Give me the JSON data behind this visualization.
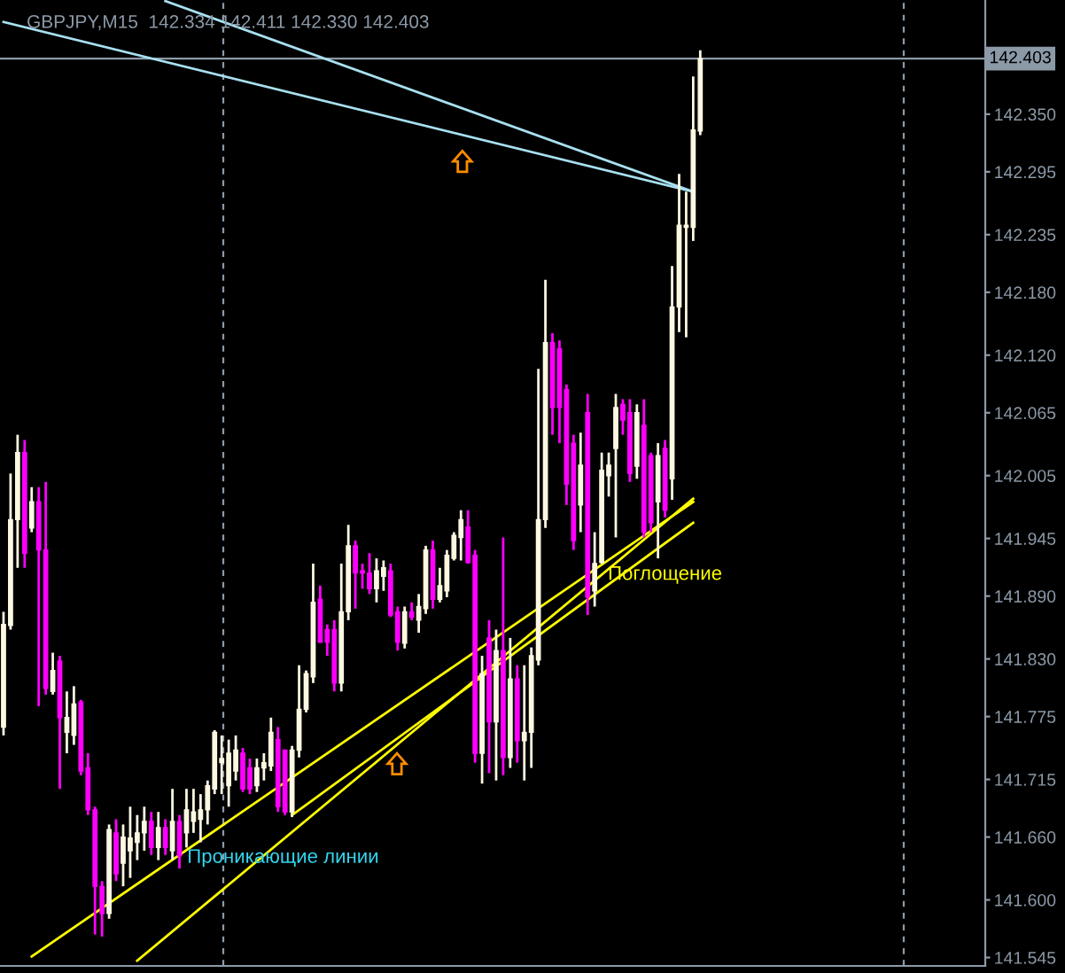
{
  "chart_data": {
    "type": "candlestick",
    "title": "GBPJPY,M15  142.334 142.411 142.330 142.403",
    "categories": [
      null,
      null,
      null,
      null,
      null,
      null,
      null,
      null,
      null,
      null,
      null,
      null,
      null,
      null,
      null,
      null,
      null,
      null,
      null,
      null,
      null,
      null,
      null,
      null,
      null,
      null,
      null,
      null,
      null,
      null,
      null,
      null,
      null,
      null,
      null,
      null,
      null,
      null,
      null,
      null,
      null,
      null,
      null,
      null,
      null,
      null,
      null,
      null,
      null,
      null,
      null,
      null,
      null,
      null,
      null,
      null,
      null,
      null,
      null,
      null,
      null,
      null,
      null,
      null,
      null,
      null,
      null,
      null,
      null,
      null,
      null,
      null,
      null,
      null,
      null,
      null,
      null,
      null,
      null,
      null,
      null,
      null,
      null,
      null,
      null,
      null,
      null,
      null,
      null,
      null,
      null,
      null,
      null,
      null,
      null,
      null,
      null,
      null,
      null,
      null,
      null,
      null,
      null,
      null,
      null,
      null,
      null,
      null,
      null,
      null,
      null,
      null,
      null,
      null,
      null,
      null,
      null,
      null,
      null,
      null,
      null,
      null,
      null,
      null,
      null,
      null,
      null,
      null,
      null,
      null,
      null,
      null,
      null,
      null,
      null,
      null,
      null,
      null,
      null,
      null
    ],
    "ohlc": [
      [
        141.765,
        141.875,
        141.757,
        141.863
      ],
      [
        141.862,
        142.007,
        141.858,
        141.963
      ],
      [
        141.963,
        142.044,
        141.917,
        142.027
      ],
      [
        142.027,
        142.039,
        141.917,
        141.931
      ],
      [
        141.955,
        141.994,
        141.951,
        141.98
      ],
      [
        141.98,
        141.994,
        141.785,
        141.934
      ],
      [
        141.934,
        141.999,
        141.796,
        141.802
      ],
      [
        141.799,
        141.836,
        141.796,
        141.819
      ],
      [
        141.828,
        141.833,
        141.706,
        141.774
      ],
      [
        141.76,
        141.799,
        141.74,
        141.774
      ],
      [
        141.757,
        141.804,
        141.748,
        141.787
      ],
      [
        141.789,
        141.791,
        141.719,
        141.723
      ],
      [
        141.726,
        141.74,
        141.681,
        141.686
      ],
      [
        141.686,
        141.689,
        141.567,
        141.613
      ],
      [
        141.613,
        141.618,
        141.565,
        141.587
      ],
      [
        141.587,
        141.672,
        141.582,
        141.667
      ],
      [
        141.664,
        141.677,
        141.618,
        141.625
      ],
      [
        141.635,
        141.672,
        141.613,
        141.66
      ],
      [
        141.647,
        141.689,
        141.621,
        141.659
      ],
      [
        141.655,
        141.681,
        141.638,
        141.664
      ],
      [
        141.664,
        141.689,
        141.647,
        141.675
      ],
      [
        141.675,
        141.684,
        141.643,
        141.65
      ],
      [
        141.65,
        141.684,
        141.638,
        141.669
      ],
      [
        141.669,
        141.677,
        141.643,
        141.65
      ],
      [
        141.647,
        141.706,
        141.638,
        141.675
      ],
      [
        141.675,
        141.681,
        141.63,
        141.642
      ],
      [
        141.664,
        141.706,
        141.65,
        141.686
      ],
      [
        141.675,
        141.706,
        141.664,
        141.684
      ],
      [
        141.677,
        141.701,
        141.655,
        141.686
      ],
      [
        141.686,
        141.714,
        141.672,
        141.709
      ],
      [
        141.706,
        141.762,
        141.701,
        141.76
      ],
      [
        141.731,
        141.757,
        141.701,
        141.735
      ],
      [
        141.709,
        141.753,
        141.689,
        141.74
      ],
      [
        141.723,
        141.757,
        141.714,
        141.743
      ],
      [
        141.74,
        141.745,
        141.703,
        141.706
      ],
      [
        141.726,
        141.735,
        141.701,
        141.706
      ],
      [
        141.709,
        141.735,
        141.703,
        141.726
      ],
      [
        141.726,
        141.74,
        141.714,
        141.731
      ],
      [
        141.728,
        141.774,
        141.723,
        141.76
      ],
      [
        141.753,
        141.765,
        141.684,
        141.689
      ],
      [
        141.743,
        141.743,
        141.681,
        141.684
      ],
      [
        141.684,
        141.747,
        141.679,
        141.743
      ],
      [
        141.743,
        141.824,
        141.736,
        141.782
      ],
      [
        141.782,
        141.819,
        141.779,
        141.816
      ],
      [
        141.813,
        141.921,
        141.807,
        141.884
      ],
      [
        141.887,
        141.9,
        141.846,
        141.846
      ],
      [
        141.858,
        141.863,
        141.833,
        141.846
      ],
      [
        141.858,
        141.867,
        141.799,
        141.807
      ],
      [
        141.807,
        141.921,
        141.799,
        141.875
      ],
      [
        141.875,
        141.958,
        141.867,
        141.938
      ],
      [
        141.938,
        141.943,
        141.878,
        141.912
      ],
      [
        141.914,
        141.921,
        141.897,
        141.912
      ],
      [
        141.912,
        141.931,
        141.892,
        141.897
      ],
      [
        141.897,
        141.926,
        141.884,
        141.914
      ],
      [
        141.909,
        141.924,
        141.895,
        141.917
      ],
      [
        141.914,
        141.921,
        141.87,
        141.872
      ],
      [
        141.875,
        141.88,
        141.838,
        141.846
      ],
      [
        141.845,
        141.88,
        141.84,
        141.875
      ],
      [
        141.875,
        141.884,
        141.867,
        141.87
      ],
      [
        141.867,
        141.892,
        141.855,
        141.88
      ],
      [
        141.878,
        141.938,
        141.873,
        141.934
      ],
      [
        141.934,
        141.943,
        141.878,
        141.887
      ],
      [
        141.887,
        141.917,
        141.884,
        141.9
      ],
      [
        141.895,
        141.934,
        141.889,
        141.929
      ],
      [
        141.926,
        141.951,
        141.924,
        141.948
      ],
      [
        141.946,
        141.972,
        141.924,
        141.963
      ],
      [
        141.956,
        141.972,
        141.921,
        141.922
      ],
      [
        141.929,
        141.934,
        141.731,
        141.74
      ],
      [
        141.74,
        141.833,
        141.711,
        141.816
      ],
      [
        141.85,
        141.867,
        141.721,
        141.77
      ],
      [
        141.77,
        141.858,
        141.714,
        141.838
      ],
      [
        141.838,
        141.946,
        141.719,
        141.736
      ],
      [
        141.736,
        141.85,
        141.726,
        141.811
      ],
      [
        141.811,
        141.824,
        141.731,
        141.752
      ],
      [
        141.752,
        141.824,
        141.714,
        141.76
      ],
      [
        141.76,
        141.841,
        141.726,
        141.833
      ],
      [
        141.829,
        142.107,
        141.824,
        141.963
      ],
      [
        141.963,
        142.192,
        141.955,
        142.132
      ],
      [
        142.132,
        142.141,
        142.044,
        142.07
      ],
      [
        142.126,
        142.134,
        142.036,
        142.07
      ],
      [
        142.087,
        142.092,
        141.977,
        141.997
      ],
      [
        142.036,
        142.044,
        141.934,
        141.943
      ],
      [
        141.977,
        142.046,
        141.951,
        142.015
      ],
      [
        142.065,
        142.083,
        141.872,
        141.889
      ],
      [
        141.895,
        141.951,
        141.88,
        141.921
      ],
      [
        141.922,
        142.027,
        141.921,
        142.01
      ],
      [
        142.005,
        142.027,
        141.985,
        142.015
      ],
      [
        142.031,
        142.083,
        141.946,
        142.07
      ],
      [
        142.073,
        142.078,
        142.044,
        142.058
      ],
      [
        142.065,
        142.078,
        141.999,
        142.007
      ],
      [
        142.014,
        142.073,
        142.002,
        142.065
      ],
      [
        142.053,
        142.078,
        141.946,
        141.951
      ],
      [
        142.024,
        142.027,
        141.951,
        141.96
      ],
      [
        141.98,
        142.036,
        141.926,
        142.024
      ],
      [
        142.031,
        142.039,
        141.965,
        141.972
      ],
      [
        142.002,
        142.205,
        141.982,
        142.166
      ],
      [
        142.166,
        142.293,
        142.142,
        142.244
      ],
      [
        142.242,
        142.276,
        142.137,
        142.244
      ],
      [
        142.242,
        142.386,
        142.229,
        142.335
      ],
      [
        142.334,
        142.411,
        142.33,
        142.403
      ],
      null,
      null,
      null,
      null,
      null,
      null,
      null,
      null,
      null,
      null,
      null,
      null,
      null,
      null,
      null,
      null,
      null,
      null,
      null,
      null,
      null,
      null,
      null,
      null,
      null,
      null,
      null,
      null,
      null,
      null,
      null,
      null,
      null,
      null,
      null,
      null,
      null,
      null,
      null,
      null
    ],
    "colors": [
      "#fdf8e1",
      "#fdf8e1",
      "#fdf8e1",
      "#ff00ff",
      "#fdf8e1",
      "#ff00ff",
      "#ff00ff",
      "#fdf8e1",
      "#ff00ff",
      "#fdf8e1",
      "#fdf8e1",
      "#ff00ff",
      "#ff00ff",
      "#ff00ff",
      "#ff00ff",
      "#fdf8e1",
      "#ff00ff",
      "#fdf8e1",
      "#fdf8e1",
      "#fdf8e1",
      "#fdf8e1",
      "#ff00ff",
      "#fdf8e1",
      "#ff00ff",
      "#fdf8e1",
      "#ff00ff",
      "#fdf8e1",
      "#fdf8e1",
      "#fdf8e1",
      "#fdf8e1",
      "#fdf8e1",
      "#fdf8e1",
      "#fdf8e1",
      "#fdf8e1",
      "#ff00ff",
      "#ff00ff",
      "#fdf8e1",
      "#fdf8e1",
      "#fdf8e1",
      "#ff00ff",
      "#ff00ff",
      "#fdf8e1",
      "#fdf8e1",
      "#fdf8e1",
      "#fdf8e1",
      "#ff00ff",
      "#ff00ff",
      "#ff00ff",
      "#fdf8e1",
      "#fdf8e1",
      "#ff00ff",
      "#ff00ff",
      "#ff00ff",
      "#fdf8e1",
      "#fdf8e1",
      "#ff00ff",
      "#ff00ff",
      "#fdf8e1",
      "#ff00ff",
      "#fdf8e1",
      "#fdf8e1",
      "#ff00ff",
      "#fdf8e1",
      "#fdf8e1",
      "#fdf8e1",
      "#fdf8e1",
      "#ff00ff",
      "#ff00ff",
      "#fdf8e1",
      "#ff00ff",
      "#fdf8e1",
      "#ff00ff",
      "#fdf8e1",
      "#ff00ff",
      "#fdf8e1",
      "#fdf8e1",
      "#fdf8e1",
      "#fdf8e1",
      "#ff00ff",
      "#ff00ff",
      "#ff00ff",
      "#ff00ff",
      "#fdf8e1",
      "#ff00ff",
      "#fdf8e1",
      "#fdf8e1",
      "#fdf8e1",
      "#fdf8e1",
      "#ff00ff",
      "#ff00ff",
      "#fdf8e1",
      "#ff00ff",
      "#ff00ff",
      "#fdf8e1",
      "#ff00ff",
      "#fdf8e1",
      "#fdf8e1",
      "#fdf8e1",
      "#fdf8e1",
      "#fdf8e1",
      null,
      null,
      null,
      null,
      null,
      null,
      null,
      null,
      null,
      null,
      null,
      null,
      null,
      null,
      null,
      null,
      null,
      null,
      null,
      null,
      null,
      null,
      null,
      null,
      null,
      null,
      null,
      null,
      null,
      null,
      null,
      null,
      null,
      null,
      null,
      null,
      null,
      null,
      null,
      null
    ],
    "series": [
      {
        "type": "line",
        "color": "#a8e0f0",
        "values": [
          142.438,
          null,
          null,
          null,
          null,
          null,
          null,
          null,
          null,
          null,
          null,
          null,
          null,
          null,
          null,
          null,
          null,
          null,
          null,
          null,
          null,
          null,
          null,
          null,
          null,
          null,
          null,
          null,
          null,
          null,
          null,
          null,
          null,
          null,
          null,
          null,
          null,
          null,
          null,
          null,
          null,
          null,
          null,
          null,
          null,
          null,
          null,
          null,
          null,
          null,
          null,
          null,
          null,
          null,
          null,
          null,
          null,
          null,
          null,
          null,
          null,
          null,
          null,
          null,
          null,
          null,
          null,
          null,
          null,
          null,
          null,
          null,
          null,
          null,
          null,
          null,
          null,
          null,
          null,
          null,
          null,
          null,
          null,
          null,
          null,
          null,
          null,
          null,
          null,
          null,
          null,
          null,
          null,
          null,
          null,
          null,
          null,
          null,
          142.276,
          null,
          null,
          null,
          null,
          null,
          null,
          null,
          null,
          null,
          null,
          null,
          null,
          null,
          null,
          null,
          null,
          null,
          null,
          null,
          null,
          null,
          null,
          null,
          null,
          null,
          null,
          null,
          null,
          null,
          null,
          null,
          null,
          null,
          null,
          null,
          null,
          null,
          null,
          null,
          null,
          null
        ]
      },
      {
        "type": "line",
        "color": "#a8e0f0",
        "values": [
          null,
          null,
          null,
          null,
          null,
          null,
          null,
          null,
          null,
          null,
          null,
          null,
          null,
          null,
          null,
          null,
          null,
          null,
          null,
          null,
          null,
          null,
          null,
          142.458,
          null,
          null,
          null,
          null,
          null,
          null,
          null,
          null,
          null,
          null,
          null,
          null,
          null,
          null,
          null,
          null,
          null,
          null,
          null,
          null,
          null,
          null,
          null,
          null,
          null,
          null,
          null,
          null,
          null,
          null,
          null,
          null,
          null,
          null,
          null,
          null,
          null,
          null,
          null,
          null,
          null,
          null,
          null,
          null,
          null,
          null,
          null,
          null,
          null,
          null,
          null,
          null,
          null,
          null,
          null,
          null,
          null,
          null,
          null,
          null,
          null,
          null,
          null,
          null,
          null,
          null,
          null,
          null,
          null,
          null,
          null,
          null,
          null,
          null,
          142.276,
          null,
          null,
          null,
          null,
          null,
          null,
          null,
          null,
          null,
          null,
          null,
          null,
          null,
          null,
          null,
          null,
          null,
          null,
          null,
          null,
          null,
          null,
          null,
          null,
          null,
          null,
          null,
          null,
          null,
          null,
          null,
          null,
          null,
          null,
          null,
          null,
          null,
          null,
          null,
          null,
          null
        ]
      },
      {
        "type": "line",
        "color": "#ffff00",
        "values": [
          null,
          null,
          null,
          null,
          141.546,
          null,
          null,
          null,
          null,
          null,
          null,
          null,
          null,
          null,
          null,
          null,
          null,
          null,
          null,
          null,
          null,
          null,
          null,
          null,
          null,
          null,
          null,
          null,
          null,
          null,
          null,
          null,
          null,
          null,
          null,
          null,
          null,
          null,
          null,
          null,
          null,
          null,
          null,
          null,
          null,
          null,
          null,
          null,
          null,
          null,
          null,
          null,
          null,
          null,
          null,
          null,
          null,
          null,
          null,
          null,
          null,
          null,
          null,
          null,
          null,
          null,
          null,
          null,
          null,
          null,
          null,
          null,
          null,
          null,
          null,
          null,
          null,
          null,
          null,
          null,
          null,
          null,
          null,
          null,
          null,
          null,
          null,
          null,
          null,
          null,
          null,
          null,
          null,
          null,
          null,
          null,
          null,
          null,
          141.98,
          null,
          null,
          null,
          null,
          null,
          null,
          null,
          null,
          null,
          null,
          null,
          null,
          null,
          null,
          null,
          null,
          null,
          null,
          null,
          null,
          null,
          null,
          null,
          null,
          null,
          null,
          null,
          null,
          null,
          null,
          null,
          null,
          null,
          null,
          null,
          null,
          null,
          null,
          null,
          null,
          null
        ]
      },
      {
        "type": "line",
        "color": "#ffff00",
        "values": [
          null,
          null,
          null,
          null,
          null,
          null,
          null,
          null,
          null,
          null,
          null,
          null,
          null,
          null,
          null,
          null,
          null,
          null,
          null,
          141.542,
          null,
          null,
          null,
          null,
          null,
          null,
          null,
          null,
          null,
          null,
          null,
          null,
          null,
          null,
          null,
          null,
          null,
          null,
          null,
          null,
          null,
          null,
          null,
          null,
          null,
          null,
          null,
          null,
          null,
          null,
          null,
          null,
          null,
          null,
          null,
          null,
          null,
          null,
          null,
          null,
          null,
          null,
          null,
          null,
          null,
          null,
          null,
          null,
          null,
          null,
          null,
          null,
          null,
          null,
          null,
          null,
          null,
          null,
          null,
          null,
          null,
          null,
          null,
          null,
          null,
          null,
          null,
          null,
          null,
          null,
          null,
          null,
          null,
          null,
          null,
          null,
          null,
          null,
          141.983,
          null,
          null,
          null,
          null,
          null,
          null,
          null,
          null,
          null,
          null,
          null,
          null,
          null,
          null,
          null,
          null,
          null,
          null,
          null,
          null,
          null,
          null,
          null,
          null,
          null,
          null,
          null,
          null,
          null,
          null,
          null,
          null,
          null,
          null,
          null,
          null,
          null,
          null,
          null,
          null,
          null
        ]
      },
      {
        "type": "line",
        "color": "#ffff00",
        "values": [
          null,
          null,
          null,
          null,
          null,
          null,
          null,
          null,
          null,
          null,
          null,
          null,
          null,
          null,
          null,
          null,
          null,
          null,
          null,
          null,
          null,
          null,
          null,
          null,
          null,
          null,
          null,
          null,
          null,
          null,
          null,
          null,
          null,
          null,
          null,
          null,
          null,
          null,
          null,
          null,
          null,
          141.681,
          null,
          null,
          null,
          null,
          null,
          null,
          null,
          null,
          null,
          null,
          null,
          null,
          null,
          null,
          null,
          null,
          null,
          null,
          null,
          null,
          null,
          null,
          null,
          null,
          null,
          null,
          null,
          null,
          null,
          null,
          null,
          null,
          null,
          null,
          null,
          null,
          null,
          null,
          null,
          null,
          null,
          null,
          null,
          null,
          null,
          null,
          null,
          null,
          null,
          null,
          null,
          null,
          null,
          null,
          null,
          null,
          141.96,
          null,
          null,
          null,
          null,
          null,
          null,
          null,
          null,
          null,
          null,
          null,
          null,
          null,
          null,
          null,
          null,
          null,
          null,
          null,
          null,
          null,
          null,
          null,
          null,
          null,
          null,
          null,
          null,
          null,
          null,
          null,
          null,
          null,
          null,
          null,
          null,
          null,
          null,
          null,
          null,
          null
        ]
      }
    ],
    "ylim": [
      141.537,
      142.459
    ],
    "yticks": [
      141.545,
      {
        "value": 141.6,
        "label": "141.600"
      },
      {
        "value": 141.66,
        "label": "141.660"
      },
      141.715,
      141.775,
      {
        "value": 141.83,
        "label": "141.830"
      },
      {
        "value": 141.89,
        "label": "141.890"
      },
      141.945,
      142.005,
      142.065,
      {
        "value": 142.12,
        "label": "142.120"
      },
      {
        "value": 142.18,
        "label": "142.180"
      },
      142.235,
      142.295,
      {
        "value": 142.35,
        "label": "142.350"
      }
    ],
    "ref_lines": [
      {
        "axis": "y",
        "value": 142.403,
        "label": "142.403",
        "line_style": "solid",
        "color": "#8c9aa8"
      }
    ],
    "annotations": [
      "Проникающие линии",
      "Поглощение"
    ],
    "grid": false,
    "legend": false,
    "tick_labels": "y"
  }
}
